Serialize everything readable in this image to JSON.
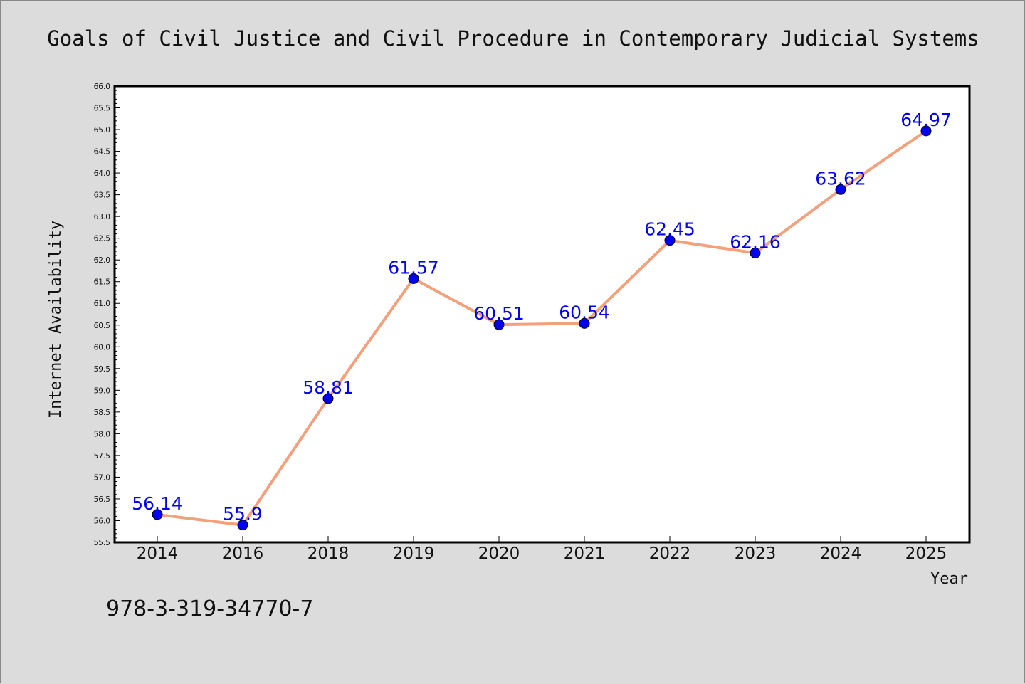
{
  "chart_data": {
    "type": "line",
    "title": "Goals of Civil Justice and Civil Procedure in Contemporary Judicial Systems",
    "xlabel": "Year",
    "ylabel": "Internet Availability",
    "categories": [
      "2014",
      "2016",
      "2018",
      "2019",
      "2020",
      "2021",
      "2022",
      "2023",
      "2024",
      "2025"
    ],
    "series": [
      {
        "values": [
          56.14,
          55.9,
          58.81,
          61.57,
          60.51,
          60.54,
          62.45,
          62.16,
          63.62,
          64.97
        ],
        "labels": [
          "56.14",
          "55.9",
          "58.81",
          "61.57",
          "60.51",
          "60.54",
          "62.45",
          "62.16",
          "63.62",
          "64.97"
        ],
        "line_color": "#f4a07a",
        "marker_color": "#0000ee"
      }
    ],
    "ylim": [
      55.5,
      66.0
    ],
    "ytick_step": 0.5,
    "grid": false,
    "data_labels": true
  },
  "annotation": "978-3-319-34770-7"
}
